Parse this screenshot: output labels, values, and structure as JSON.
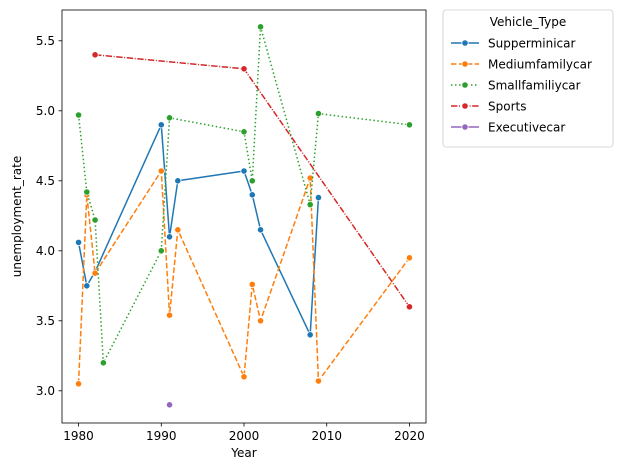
{
  "chart_data": {
    "type": "line",
    "xlabel": "Year",
    "ylabel": "unemployment_rate",
    "xlim": [
      1978,
      2022
    ],
    "ylim": [
      2.77,
      5.72
    ],
    "xticks": [
      1980,
      1990,
      2000,
      2010,
      2020
    ],
    "yticks": [
      3.0,
      3.5,
      4.0,
      4.5,
      5.0,
      5.5
    ],
    "xtick_labels": [
      "1980",
      "1990",
      "2000",
      "2010",
      "2020"
    ],
    "ytick_labels": [
      "3.0",
      "3.5",
      "4.0",
      "4.5",
      "5.0",
      "5.5"
    ],
    "grid": false,
    "legend": {
      "title": "Vehicle_Type",
      "placement": "outside-upper-right"
    },
    "series": [
      {
        "name": "Supperminicar",
        "color": "#1f77b4",
        "dash": "solid",
        "points": [
          [
            1980,
            4.06
          ],
          [
            1981,
            3.75
          ],
          [
            1982,
            3.85
          ],
          [
            1990,
            4.9
          ],
          [
            1991,
            4.1
          ],
          [
            1992,
            4.5
          ],
          [
            2000,
            4.57
          ],
          [
            2001,
            4.4
          ],
          [
            2002,
            4.15
          ],
          [
            2008,
            3.4
          ],
          [
            2009,
            4.38
          ]
        ]
      },
      {
        "name": "Mediumfamilycar",
        "color": "#ff7f0e",
        "dash": "dashed",
        "points": [
          [
            1980,
            3.05
          ],
          [
            1981,
            4.4
          ],
          [
            1982,
            3.84
          ],
          [
            1990,
            4.57
          ],
          [
            1991,
            3.54
          ],
          [
            1992,
            4.15
          ],
          [
            2000,
            3.1
          ],
          [
            2001,
            3.76
          ],
          [
            2002,
            3.5
          ],
          [
            2008,
            4.52
          ],
          [
            2009,
            3.07
          ],
          [
            2020,
            3.95
          ]
        ]
      },
      {
        "name": "Smallfamiliycar",
        "color": "#2ca02c",
        "dash": "dotted",
        "points": [
          [
            1980,
            4.97
          ],
          [
            1981,
            4.42
          ],
          [
            1982,
            4.22
          ],
          [
            1983,
            3.2
          ],
          [
            1990,
            4.0
          ],
          [
            1991,
            4.95
          ],
          [
            2000,
            4.85
          ],
          [
            2001,
            4.5
          ],
          [
            2002,
            5.6
          ],
          [
            2008,
            4.33
          ],
          [
            2009,
            4.98
          ],
          [
            2020,
            4.9
          ]
        ]
      },
      {
        "name": "Sports",
        "color": "#d62728",
        "dash": "dashdot",
        "points": [
          [
            1982,
            5.4
          ],
          [
            2000,
            5.3
          ],
          [
            2020,
            3.6
          ]
        ]
      },
      {
        "name": "Executivecar",
        "color": "#9467bd",
        "dash": "solid",
        "points": [
          [
            1991,
            2.9
          ]
        ]
      }
    ]
  }
}
